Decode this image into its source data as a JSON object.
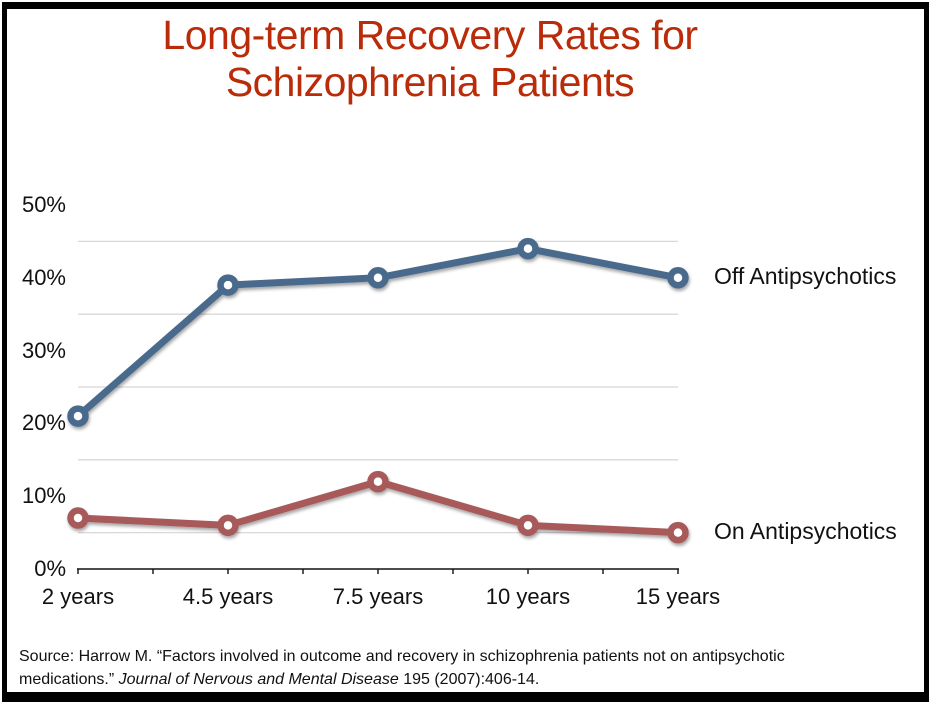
{
  "title": {
    "line1": "Long-term Recovery Rates for",
    "line2": "Schizophrenia Patients"
  },
  "chart_data": {
    "type": "line",
    "title": "Long-term Recovery Rates for Schizophrenia Patients",
    "categories": [
      "2 years",
      "4.5 years",
      "7.5 years",
      "10 years",
      "15 years"
    ],
    "series": [
      {
        "name": "Off Antipsychotics",
        "values": [
          21,
          39,
          40,
          44,
          40
        ],
        "color": "#486a8c"
      },
      {
        "name": "On Antipsychotics",
        "values": [
          7,
          6,
          12,
          6,
          5
        ],
        "color": "#a85a5a"
      }
    ],
    "xlabel": "",
    "ylabel": "",
    "ylim": [
      0,
      50
    ],
    "ytick_values": [
      0,
      10,
      20,
      30,
      40,
      50
    ],
    "ytick_labels": [
      "0%",
      "10%",
      "20%",
      "30%",
      "40%",
      "50%"
    ],
    "gridline_values": [
      5,
      15,
      25,
      35,
      45
    ],
    "grid": true,
    "legend_position": "right-of-last-point"
  },
  "source": {
    "line1": "Source: Harrow M. “Factors involved in outcome and recovery in schizophrenia patients not on antipsychotic",
    "line2_pre": "medications.” ",
    "line2_italic": "Journal of Nervous and Mental Disease",
    "line2_post": " 195 (2007):406-14."
  },
  "colors": {
    "title_red": "#b92b09",
    "off_line_blue": "#486a8c",
    "on_line_red": "#a85a5a",
    "gridline_gray": "#d8d8d8",
    "axis_black": "#111111",
    "frame_black": "#000000"
  }
}
